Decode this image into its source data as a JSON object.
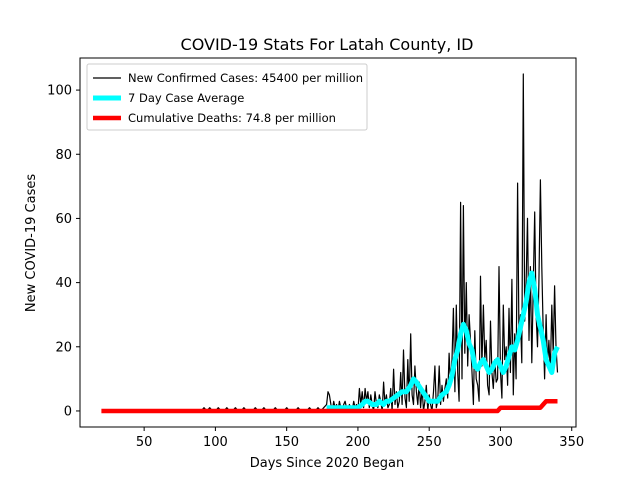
{
  "chart_data": {
    "type": "line",
    "title": "COVID-19 Stats For Latah County, ID",
    "xlabel": "Days Since 2020 Began",
    "ylabel": "New COVID-19 Cases",
    "xlim": [
      5,
      353
    ],
    "ylim": [
      -5,
      110
    ],
    "x_ticks": [
      50,
      100,
      150,
      200,
      250,
      300,
      350
    ],
    "y_ticks": [
      0,
      20,
      40,
      60,
      80,
      100
    ],
    "legend_position": "top-left",
    "grid": false,
    "series": [
      {
        "name": "New Confirmed Cases: 45400 per million",
        "color": "#000000",
        "points": [
          [
            90,
            0
          ],
          [
            92,
            1
          ],
          [
            94,
            0
          ],
          [
            96,
            1
          ],
          [
            98,
            0
          ],
          [
            100,
            0
          ],
          [
            102,
            1
          ],
          [
            104,
            0
          ],
          [
            106,
            0
          ],
          [
            108,
            1
          ],
          [
            110,
            0
          ],
          [
            112,
            0
          ],
          [
            114,
            1
          ],
          [
            116,
            0
          ],
          [
            118,
            0
          ],
          [
            120,
            1
          ],
          [
            122,
            0
          ],
          [
            124,
            0
          ],
          [
            126,
            0
          ],
          [
            128,
            1
          ],
          [
            130,
            0
          ],
          [
            132,
            0
          ],
          [
            134,
            1
          ],
          [
            136,
            0
          ],
          [
            138,
            0
          ],
          [
            140,
            0
          ],
          [
            142,
            1
          ],
          [
            144,
            0
          ],
          [
            146,
            0
          ],
          [
            148,
            0
          ],
          [
            150,
            1
          ],
          [
            152,
            0
          ],
          [
            154,
            0
          ],
          [
            156,
            0
          ],
          [
            158,
            1
          ],
          [
            160,
            0
          ],
          [
            162,
            0
          ],
          [
            164,
            0
          ],
          [
            166,
            1
          ],
          [
            168,
            0
          ],
          [
            170,
            0
          ],
          [
            172,
            1
          ],
          [
            174,
            0
          ],
          [
            176,
            1
          ],
          [
            178,
            2
          ],
          [
            179,
            6
          ],
          [
            180,
            5
          ],
          [
            181,
            2
          ],
          [
            182,
            0
          ],
          [
            183,
            3
          ],
          [
            184,
            1
          ],
          [
            185,
            2
          ],
          [
            186,
            0
          ],
          [
            187,
            3
          ],
          [
            188,
            1
          ],
          [
            189,
            0
          ],
          [
            190,
            2
          ],
          [
            191,
            3
          ],
          [
            192,
            1
          ],
          [
            193,
            0
          ],
          [
            194,
            2
          ],
          [
            195,
            1
          ],
          [
            196,
            0
          ],
          [
            197,
            3
          ],
          [
            198,
            1
          ],
          [
            199,
            2
          ],
          [
            200,
            0
          ],
          [
            201,
            7
          ],
          [
            202,
            2
          ],
          [
            203,
            6
          ],
          [
            204,
            1
          ],
          [
            205,
            7
          ],
          [
            206,
            3
          ],
          [
            207,
            6
          ],
          [
            208,
            1
          ],
          [
            209,
            5
          ],
          [
            210,
            2
          ],
          [
            211,
            0
          ],
          [
            212,
            6
          ],
          [
            213,
            2
          ],
          [
            214,
            1
          ],
          [
            215,
            5
          ],
          [
            216,
            3
          ],
          [
            217,
            0
          ],
          [
            218,
            9
          ],
          [
            219,
            2
          ],
          [
            220,
            5
          ],
          [
            221,
            1
          ],
          [
            222,
            2
          ],
          [
            223,
            7
          ],
          [
            224,
            0
          ],
          [
            225,
            13
          ],
          [
            226,
            2
          ],
          [
            227,
            6
          ],
          [
            228,
            1
          ],
          [
            229,
            3
          ],
          [
            230,
            12
          ],
          [
            231,
            2
          ],
          [
            232,
            19
          ],
          [
            233,
            4
          ],
          [
            234,
            1
          ],
          [
            235,
            16
          ],
          [
            236,
            3
          ],
          [
            237,
            24
          ],
          [
            238,
            5
          ],
          [
            239,
            2
          ],
          [
            240,
            14
          ],
          [
            241,
            6
          ],
          [
            242,
            2
          ],
          [
            243,
            9
          ],
          [
            244,
            1
          ],
          [
            245,
            7
          ],
          [
            246,
            0
          ],
          [
            247,
            3
          ],
          [
            248,
            8
          ],
          [
            249,
            0
          ],
          [
            250,
            5
          ],
          [
            251,
            2
          ],
          [
            252,
            0
          ],
          [
            253,
            6
          ],
          [
            254,
            14
          ],
          [
            255,
            1
          ],
          [
            256,
            3
          ],
          [
            257,
            14
          ],
          [
            258,
            2
          ],
          [
            259,
            8
          ],
          [
            260,
            3
          ],
          [
            261,
            7
          ],
          [
            262,
            10
          ],
          [
            263,
            4
          ],
          [
            264,
            18
          ],
          [
            265,
            8
          ],
          [
            266,
            16
          ],
          [
            267,
            32
          ],
          [
            268,
            6
          ],
          [
            269,
            33
          ],
          [
            270,
            12
          ],
          [
            271,
            3
          ],
          [
            272,
            65
          ],
          [
            273,
            10
          ],
          [
            274,
            64
          ],
          [
            275,
            18
          ],
          [
            276,
            40
          ],
          [
            277,
            14
          ],
          [
            278,
            30
          ],
          [
            279,
            22
          ],
          [
            280,
            12
          ],
          [
            281,
            2
          ],
          [
            282,
            25
          ],
          [
            283,
            10
          ],
          [
            284,
            8
          ],
          [
            285,
            3
          ],
          [
            286,
            42
          ],
          [
            287,
            14
          ],
          [
            288,
            33
          ],
          [
            289,
            16
          ],
          [
            290,
            22
          ],
          [
            291,
            8
          ],
          [
            292,
            5
          ],
          [
            293,
            28
          ],
          [
            294,
            12
          ],
          [
            295,
            7
          ],
          [
            296,
            16
          ],
          [
            297,
            9
          ],
          [
            298,
            10
          ],
          [
            299,
            45
          ],
          [
            300,
            12
          ],
          [
            301,
            4
          ],
          [
            302,
            33
          ],
          [
            303,
            16
          ],
          [
            304,
            20
          ],
          [
            305,
            8
          ],
          [
            306,
            32
          ],
          [
            307,
            12
          ],
          [
            308,
            41
          ],
          [
            309,
            5
          ],
          [
            310,
            24
          ],
          [
            311,
            10
          ],
          [
            312,
            71
          ],
          [
            313,
            22
          ],
          [
            314,
            30
          ],
          [
            315,
            15
          ],
          [
            316,
            105
          ],
          [
            317,
            28
          ],
          [
            318,
            40
          ],
          [
            319,
            60
          ],
          [
            320,
            22
          ],
          [
            321,
            45
          ],
          [
            322,
            15
          ],
          [
            323,
            38
          ],
          [
            324,
            62
          ],
          [
            325,
            30
          ],
          [
            326,
            20
          ],
          [
            327,
            40
          ],
          [
            328,
            72
          ],
          [
            329,
            45
          ],
          [
            330,
            25
          ],
          [
            331,
            10
          ],
          [
            332,
            30
          ],
          [
            333,
            14
          ],
          [
            334,
            22
          ],
          [
            335,
            12
          ],
          [
            336,
            33
          ],
          [
            337,
            18
          ],
          [
            338,
            39
          ],
          [
            339,
            20
          ],
          [
            340,
            12
          ]
        ]
      },
      {
        "name": "7 Day Case Average",
        "color": "#00ffff",
        "points": [
          [
            178,
            1
          ],
          [
            185,
            1
          ],
          [
            190,
            1
          ],
          [
            195,
            1
          ],
          [
            200,
            1
          ],
          [
            203,
            2
          ],
          [
            205,
            3
          ],
          [
            207,
            3
          ],
          [
            210,
            2
          ],
          [
            213,
            2
          ],
          [
            215,
            3
          ],
          [
            218,
            2
          ],
          [
            220,
            3
          ],
          [
            222,
            3
          ],
          [
            225,
            4
          ],
          [
            228,
            5
          ],
          [
            231,
            6
          ],
          [
            234,
            6
          ],
          [
            237,
            8
          ],
          [
            239,
            10
          ],
          [
            241,
            9
          ],
          [
            244,
            7
          ],
          [
            247,
            5
          ],
          [
            250,
            3
          ],
          [
            253,
            3
          ],
          [
            256,
            3
          ],
          [
            259,
            5
          ],
          [
            262,
            6
          ],
          [
            264,
            8
          ],
          [
            266,
            11
          ],
          [
            268,
            16
          ],
          [
            270,
            19
          ],
          [
            272,
            24
          ],
          [
            274,
            27
          ],
          [
            276,
            25
          ],
          [
            278,
            21
          ],
          [
            280,
            19
          ],
          [
            282,
            14
          ],
          [
            284,
            13
          ],
          [
            286,
            15
          ],
          [
            288,
            16
          ],
          [
            290,
            14
          ],
          [
            292,
            12
          ],
          [
            294,
            13
          ],
          [
            296,
            15
          ],
          [
            298,
            16
          ],
          [
            300,
            14
          ],
          [
            302,
            12
          ],
          [
            304,
            14
          ],
          [
            306,
            17
          ],
          [
            308,
            20
          ],
          [
            310,
            19
          ],
          [
            312,
            22
          ],
          [
            314,
            26
          ],
          [
            316,
            30
          ],
          [
            318,
            34
          ],
          [
            320,
            40
          ],
          [
            322,
            43
          ],
          [
            324,
            38
          ],
          [
            326,
            30
          ],
          [
            328,
            26
          ],
          [
            330,
            22
          ],
          [
            332,
            16
          ],
          [
            334,
            14
          ],
          [
            336,
            12
          ],
          [
            338,
            18
          ],
          [
            340,
            20
          ]
        ]
      },
      {
        "name": "Cumulative Deaths: 74.8 per million",
        "color": "#ff0000",
        "points": [
          [
            20,
            0
          ],
          [
            100,
            0
          ],
          [
            200,
            0
          ],
          [
            298,
            0
          ],
          [
            300,
            1
          ],
          [
            310,
            1
          ],
          [
            320,
            1
          ],
          [
            328,
            1
          ],
          [
            330,
            2
          ],
          [
            332,
            3
          ],
          [
            340,
            3
          ]
        ]
      }
    ]
  }
}
